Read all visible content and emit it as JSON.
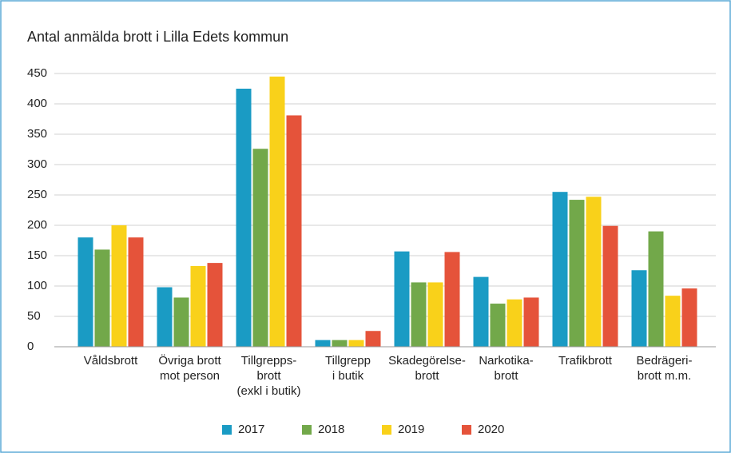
{
  "chart_data": {
    "type": "bar",
    "title": "Antal anmälda brott i Lilla Edets kommun",
    "categories": [
      [
        "Våldsbrott"
      ],
      [
        "Övriga brott",
        "mot person"
      ],
      [
        "Tillgrepps-",
        "brott",
        "(exkl i butik)"
      ],
      [
        "Tillgrepp",
        "i butik"
      ],
      [
        "Skadegörelse-",
        "brott"
      ],
      [
        "Narkotika-",
        "brott"
      ],
      [
        "Trafikbrott"
      ],
      [
        "Bedrägeri-",
        "brott m.m."
      ]
    ],
    "series": [
      {
        "name": "2017",
        "color": "#1a9bc4",
        "values": [
          180,
          98,
          425,
          11,
          157,
          115,
          255,
          126
        ]
      },
      {
        "name": "2018",
        "color": "#72a84a",
        "values": [
          160,
          81,
          326,
          11,
          106,
          71,
          242,
          190
        ]
      },
      {
        "name": "2019",
        "color": "#f9d11a",
        "values": [
          200,
          133,
          445,
          11,
          106,
          78,
          247,
          84
        ]
      },
      {
        "name": "2020",
        "color": "#e5533a",
        "values": [
          180,
          138,
          381,
          26,
          156,
          81,
          199,
          96
        ]
      }
    ],
    "ylim": [
      0,
      450
    ],
    "yticks": [
      0,
      50,
      100,
      150,
      200,
      250,
      300,
      350,
      400,
      450
    ],
    "grid": true,
    "legend": "bottom"
  }
}
